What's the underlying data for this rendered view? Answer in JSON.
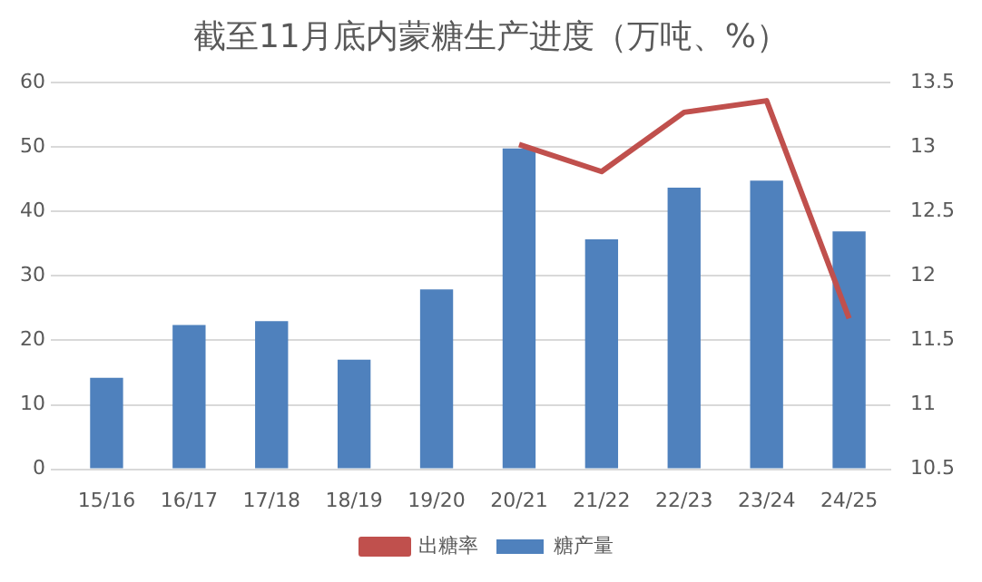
{
  "chart_data": {
    "type": "bar",
    "title": "截至11月底内蒙糖生产进度（万吨、%）",
    "categories": [
      "15/16",
      "16/17",
      "17/18",
      "18/19",
      "19/20",
      "20/21",
      "21/22",
      "22/23",
      "23/24",
      "24/25"
    ],
    "series": [
      {
        "name": "糖产量",
        "color": "#4f81bd",
        "values": [
          14.2,
          22.4,
          23.0,
          17.0,
          27.9,
          49.8,
          35.7,
          43.7,
          44.8,
          36.9
        ]
      },
      {
        "name": "出糖率",
        "type": "line",
        "axis": "y2",
        "color": "#c0504d",
        "values": [
          null,
          null,
          null,
          null,
          null,
          13.02,
          12.81,
          13.27,
          13.36,
          11.67
        ]
      }
    ],
    "ylim": [
      0,
      60
    ],
    "yticks": [
      0,
      10,
      20,
      30,
      40,
      50,
      60
    ],
    "y2lim": [
      10.5,
      13.5
    ],
    "y2ticks": [
      10.5,
      11,
      11.5,
      12,
      12.5,
      13,
      13.5
    ],
    "grid": "y",
    "legend": "bottom",
    "marker": "none"
  }
}
